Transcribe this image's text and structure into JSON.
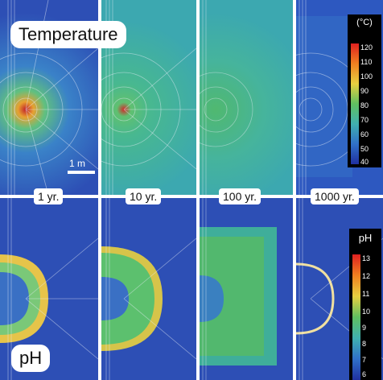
{
  "titles": {
    "temperature": "Temperature",
    "ph": "pH"
  },
  "scale_bar": "1 m",
  "time_labels": [
    "1 yr.",
    "10 yr.",
    "100 yr.",
    "1000 yr."
  ],
  "temperature_colorbar": {
    "unit": "(°C)",
    "ticks": [
      "120",
      "110",
      "100",
      "90",
      "80",
      "70",
      "60",
      "50",
      "40"
    ]
  },
  "ph_colorbar": {
    "unit": "pH",
    "ticks": [
      "13",
      "12",
      "11",
      "10",
      "9",
      "8",
      "7",
      "6"
    ]
  },
  "colors": {
    "background_blue": "#2d4fb5",
    "green_field": "#4fc07a",
    "teal_field": "#3ca8b0",
    "hot_core": "#e0302a",
    "mesh_line": "#e8eef8"
  }
}
